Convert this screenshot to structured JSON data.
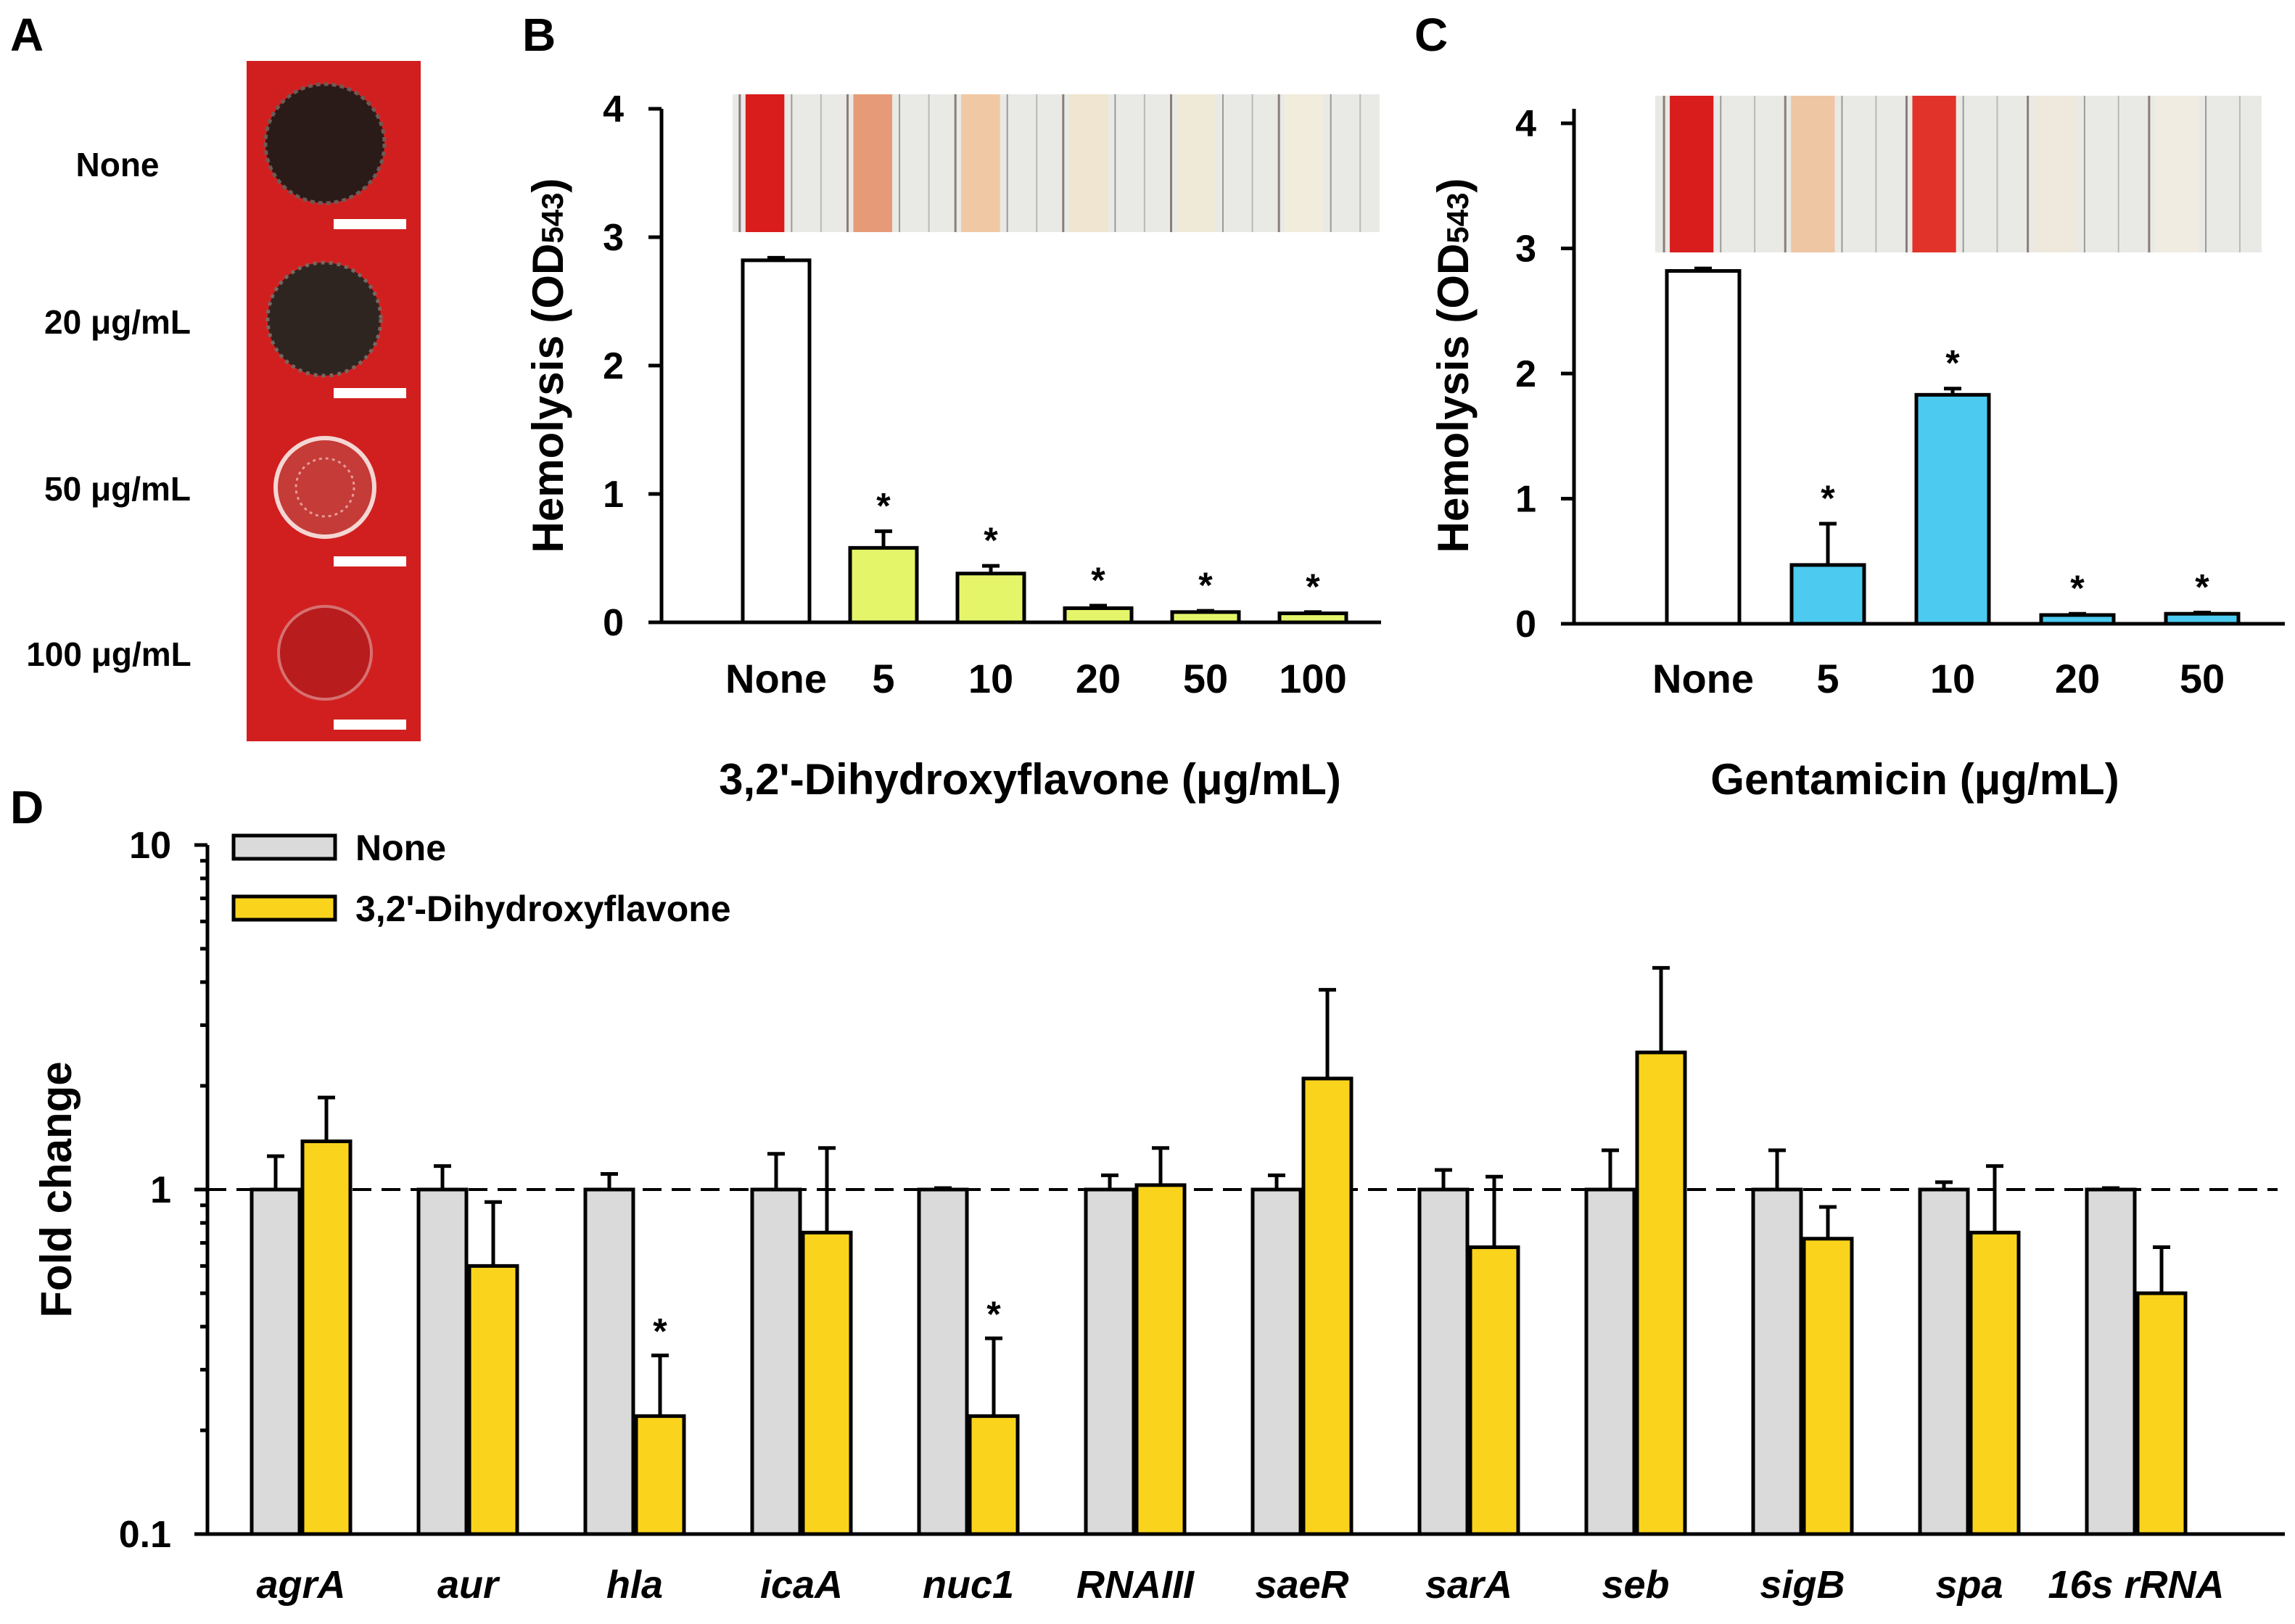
{
  "panels": {
    "A": {
      "letter": "A",
      "rows": [
        "None",
        "20 μg/mL",
        "50 μg/mL",
        "100 μg/mL"
      ],
      "background_color": "#d11f1f"
    },
    "B": {
      "letter": "B"
    },
    "C": {
      "letter": "C"
    },
    "D": {
      "letter": "D"
    }
  },
  "chart_data": [
    {
      "id": "B",
      "type": "bar",
      "title": "",
      "categories": [
        "None",
        "5",
        "10",
        "20",
        "50",
        "100"
      ],
      "values": [
        2.82,
        0.58,
        0.38,
        0.11,
        0.08,
        0.07
      ],
      "errors": [
        0.02,
        0.13,
        0.06,
        0.02,
        0.01,
        0.01
      ],
      "significant": [
        false,
        true,
        true,
        true,
        true,
        true
      ],
      "bar_colors": [
        "#ffffff",
        "#e5f56a",
        "#e5f56a",
        "#e5f56a",
        "#e5f56a",
        "#e5f56a"
      ],
      "xlabel": "3,2'-Dihydroxyflavone (μg/mL)",
      "ylabel": "Hemolysis (OD",
      "ylabel_sub": "543",
      "ylabel_close": ")",
      "ylim": [
        0,
        4
      ],
      "yticks": [
        "0",
        "1",
        "2",
        "3",
        "4"
      ],
      "tube_colors": [
        "#d91c1c",
        "#e69a77",
        "#f0c9a4",
        "#efe5d0",
        "#efead8",
        "#f1ecdc"
      ]
    },
    {
      "id": "C",
      "type": "bar",
      "title": "",
      "categories": [
        "None",
        "5",
        "10",
        "20",
        "50"
      ],
      "values": [
        2.82,
        0.47,
        1.83,
        0.07,
        0.08
      ],
      "errors": [
        0.02,
        0.33,
        0.05,
        0.01,
        0.01
      ],
      "significant": [
        false,
        true,
        true,
        true,
        true
      ],
      "bar_colors": [
        "#ffffff",
        "#4ccaf0",
        "#4ccaf0",
        "#4ccaf0",
        "#4ccaf0"
      ],
      "xlabel": "Gentamicin (μg/mL)",
      "ylabel": "Hemolysis (OD",
      "ylabel_sub": "543",
      "ylabel_close": ")",
      "ylim": [
        0,
        4
      ],
      "yticks": [
        "0",
        "1",
        "2",
        "3",
        "4"
      ],
      "tube_colors": [
        "#d91c1c",
        "#efc6a4",
        "#e2332a",
        "#efe8dc",
        "#f0ece2"
      ]
    },
    {
      "id": "D",
      "type": "bar",
      "scale": "log",
      "categories": [
        "agrA",
        "aur",
        "hla",
        "icaA",
        "nuc1",
        "RNAIII",
        "saeR",
        "sarA",
        "seb",
        "sigB",
        "spa",
        "16s rRNA"
      ],
      "series": [
        {
          "name": "None",
          "color": "#dadada",
          "values": [
            1,
            1,
            1,
            1,
            1,
            1,
            1,
            1,
            1,
            1,
            1,
            1
          ],
          "err_upper": [
            1.25,
            1.17,
            1.11,
            1.27,
            1.01,
            1.1,
            1.1,
            1.14,
            1.3,
            1.3,
            1.05,
            1.01
          ],
          "significant": [
            false,
            false,
            false,
            false,
            false,
            false,
            false,
            false,
            false,
            false,
            false,
            false
          ]
        },
        {
          "name": "3,2'-Dihydroxyflavone",
          "color": "#fad41c",
          "values": [
            1.38,
            0.6,
            0.22,
            0.75,
            0.22,
            1.03,
            2.1,
            0.68,
            2.5,
            0.72,
            0.75,
            0.5
          ],
          "err_upper": [
            1.85,
            0.92,
            0.33,
            1.32,
            0.37,
            1.32,
            3.8,
            1.09,
            4.4,
            0.89,
            1.17,
            0.68
          ],
          "significant": [
            false,
            false,
            true,
            false,
            true,
            false,
            false,
            false,
            false,
            false,
            false,
            false
          ]
        }
      ],
      "ylabel": "Fold change",
      "ylim": [
        0.1,
        10
      ],
      "yticks": [
        "0.1",
        "1",
        "10"
      ],
      "reference_line": 1,
      "legend_position": "top-left"
    }
  ],
  "sig_marker": "*"
}
